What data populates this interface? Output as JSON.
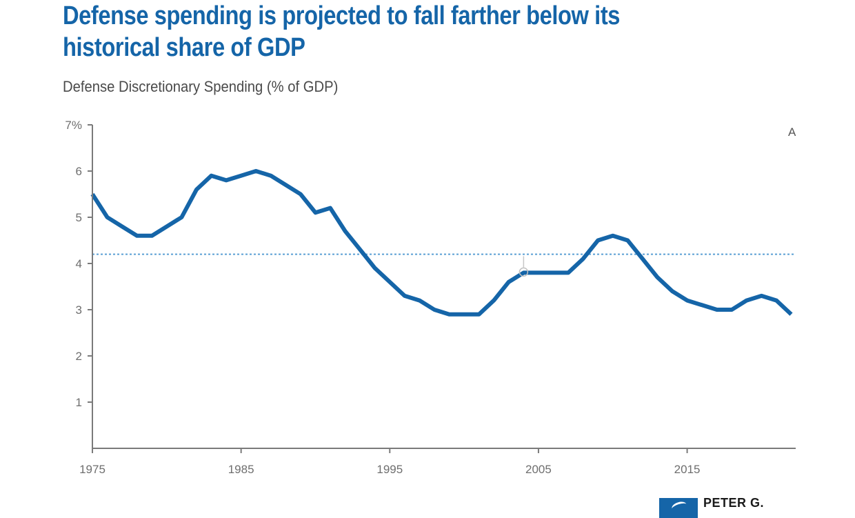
{
  "chart_title": "Defense spending is projected to fall farther below its historical share of GDP",
  "chart_subtitle": "Defense Discretionary Spending (% of GDP)",
  "logo_text": "PETER G.",
  "edge_text": "A",
  "colors": {
    "title": "#1565a8",
    "series_line": "#1565a8",
    "reference_line": "#5a9fd4",
    "axis": "#7a7a7a",
    "tick_text": "#6e6e6e"
  },
  "chart_data": {
    "type": "line",
    "title": "Defense spending is projected to fall farther below its historical share of GDP",
    "subtitle": "Defense Discretionary Spending (% of GDP)",
    "xlabel": "",
    "ylabel": "",
    "xlim": [
      1975,
      2022.3
    ],
    "ylim": [
      0,
      7
    ],
    "x_ticks": [
      1975,
      1985,
      1995,
      2005,
      2015
    ],
    "x_tick_labels": [
      "1975",
      "1985",
      "1995",
      "2005",
      "2015"
    ],
    "y_ticks": [
      1,
      2,
      3,
      4,
      5,
      6,
      7
    ],
    "y_tick_labels": [
      "1",
      "2",
      "3",
      "4",
      "5",
      "6",
      "7%"
    ],
    "grid": false,
    "reference_line": {
      "y": 4.2,
      "style": "dotted"
    },
    "series": [
      {
        "x": [
          1975,
          1976,
          1977,
          1978,
          1979,
          1980,
          1981,
          1982,
          1983,
          1984,
          1985,
          1986,
          1987,
          1988,
          1989,
          1990,
          1991,
          1992,
          1993,
          1994,
          1995,
          1996,
          1997,
          1998,
          1999,
          2000,
          2001,
          2002,
          2003,
          2004,
          2005,
          2006,
          2007,
          2008,
          2009,
          2010,
          2011,
          2012,
          2013,
          2014,
          2015,
          2016,
          2017,
          2018,
          2019,
          2020,
          2021,
          2022
        ],
        "values": [
          5.5,
          5.0,
          4.8,
          4.6,
          4.6,
          4.8,
          5.0,
          5.6,
          5.9,
          5.8,
          5.9,
          6.0,
          5.9,
          5.7,
          5.5,
          5.1,
          5.2,
          4.7,
          4.3,
          3.9,
          3.6,
          3.3,
          3.2,
          3.0,
          2.9,
          2.9,
          2.9,
          3.2,
          3.6,
          3.8,
          3.8,
          3.8,
          3.8,
          4.1,
          4.5,
          4.6,
          4.5,
          4.1,
          3.7,
          3.4,
          3.2,
          3.1,
          3.0,
          3.0,
          3.2,
          3.3,
          3.2,
          2.9
        ]
      }
    ]
  }
}
